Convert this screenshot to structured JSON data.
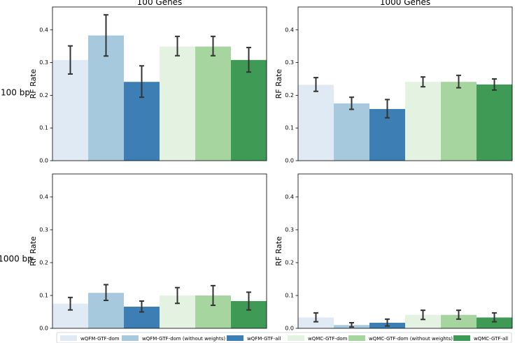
{
  "series_names": [
    "wQFM-GTF-dom",
    "wQFM-GTF-dom (without weights)",
    "wQFM-GTF-all",
    "wQMC-GTF-dom",
    "wQMC-GTF-dom (without weights)",
    "wQMC-GTF-all"
  ],
  "colors": [
    "#dfeaf4",
    "#a7c9de",
    "#3d7fb4",
    "#e4f3e1",
    "#a6d59f",
    "#3f9a55"
  ],
  "row_labels": [
    "100 bp",
    "1000 bp"
  ],
  "col_titles": [
    "100 Genes",
    "1000 Genes"
  ],
  "chart_data": [
    {
      "type": "bar",
      "title": "100 Genes",
      "row_label": "100 bp",
      "ylabel": "RF Rate",
      "ylim": [
        0,
        0.47
      ],
      "yticks": [
        "0.0",
        "0.1",
        "0.2",
        "0.3",
        "0.4"
      ],
      "series": [
        {
          "name": "wQFM-GTF-dom",
          "value": 0.308,
          "err": [
            0.265,
            0.351
          ]
        },
        {
          "name": "wQFM-GTF-dom (without weights)",
          "value": 0.383,
          "err": [
            0.32,
            0.446
          ]
        },
        {
          "name": "wQFM-GTF-all",
          "value": 0.241,
          "err": [
            0.194,
            0.29
          ]
        },
        {
          "name": "wQMC-GTF-dom",
          "value": 0.349,
          "err": [
            0.321,
            0.38
          ]
        },
        {
          "name": "wQMC-GTF-dom (without weights)",
          "value": 0.349,
          "err": [
            0.321,
            0.38
          ]
        },
        {
          "name": "wQMC-GTF-all",
          "value": 0.308,
          "err": [
            0.271,
            0.346
          ]
        }
      ]
    },
    {
      "type": "bar",
      "title": "1000 Genes",
      "row_label": "100 bp",
      "ylabel": "RF Rate",
      "ylim": [
        0,
        0.47
      ],
      "yticks": [
        "0.0",
        "0.1",
        "0.2",
        "0.3",
        "0.4"
      ],
      "series": [
        {
          "name": "wQFM-GTF-dom",
          "value": 0.232,
          "err": [
            0.212,
            0.254
          ]
        },
        {
          "name": "wQFM-GTF-dom (without weights)",
          "value": 0.175,
          "err": [
            0.157,
            0.194
          ]
        },
        {
          "name": "wQFM-GTF-all",
          "value": 0.158,
          "err": [
            0.131,
            0.187
          ]
        },
        {
          "name": "wQMC-GTF-dom",
          "value": 0.241,
          "err": [
            0.226,
            0.256
          ]
        },
        {
          "name": "wQMC-GTF-dom (without weights)",
          "value": 0.241,
          "err": [
            0.223,
            0.261
          ]
        },
        {
          "name": "wQMC-GTF-all",
          "value": 0.233,
          "err": [
            0.216,
            0.25
          ]
        }
      ]
    },
    {
      "type": "bar",
      "title": "",
      "row_label": "1000 bp",
      "ylabel": "RF Rate",
      "ylim": [
        0,
        0.47
      ],
      "yticks": [
        "0.0",
        "0.1",
        "0.2",
        "0.3",
        "0.4"
      ],
      "series": [
        {
          "name": "wQFM-GTF-dom",
          "value": 0.075,
          "err": [
            0.056,
            0.094
          ]
        },
        {
          "name": "wQFM-GTF-dom (without weights)",
          "value": 0.108,
          "err": [
            0.085,
            0.133
          ]
        },
        {
          "name": "wQFM-GTF-all",
          "value": 0.066,
          "err": [
            0.05,
            0.083
          ]
        },
        {
          "name": "wQMC-GTF-dom",
          "value": 0.1,
          "err": [
            0.076,
            0.124
          ]
        },
        {
          "name": "wQMC-GTF-dom (without weights)",
          "value": 0.1,
          "err": [
            0.07,
            0.13
          ]
        },
        {
          "name": "wQMC-GTF-all",
          "value": 0.083,
          "err": [
            0.056,
            0.11
          ]
        }
      ]
    },
    {
      "type": "bar",
      "title": "",
      "row_label": "1000 bp",
      "ylabel": "RF Rate",
      "ylim": [
        0,
        0.47
      ],
      "yticks": [
        "0.0",
        "0.1",
        "0.2",
        "0.3",
        "0.4"
      ],
      "series": [
        {
          "name": "wQFM-GTF-dom",
          "value": 0.033,
          "err": [
            0.02,
            0.047
          ]
        },
        {
          "name": "wQFM-GTF-dom (without weights)",
          "value": 0.01,
          "err": [
            0.004,
            0.017
          ]
        },
        {
          "name": "wQFM-GTF-all",
          "value": 0.017,
          "err": [
            0.007,
            0.028
          ]
        },
        {
          "name": "wQMC-GTF-dom",
          "value": 0.041,
          "err": [
            0.027,
            0.055
          ]
        },
        {
          "name": "wQMC-GTF-dom (without weights)",
          "value": 0.041,
          "err": [
            0.028,
            0.055
          ]
        },
        {
          "name": "wQMC-GTF-all",
          "value": 0.033,
          "err": [
            0.02,
            0.047
          ]
        }
      ]
    }
  ]
}
